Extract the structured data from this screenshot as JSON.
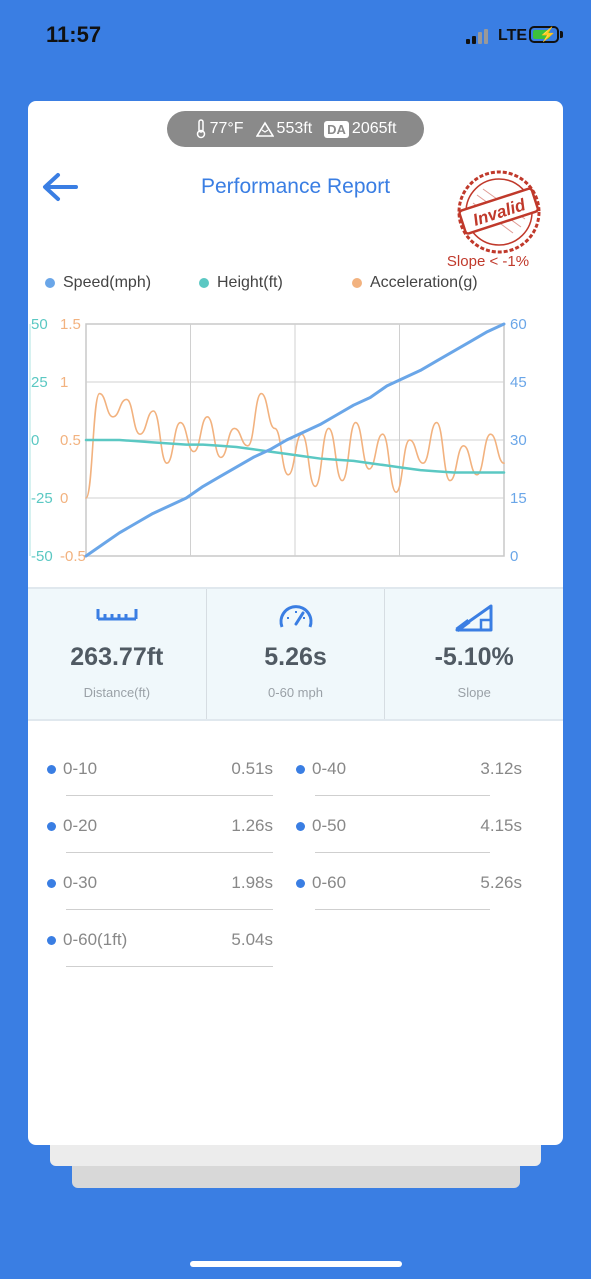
{
  "status_bar": {
    "time": "11:57",
    "network": "LTE"
  },
  "environment": {
    "temperature": "77°F",
    "altitude": "553ft",
    "da_badge": "DA",
    "density_altitude": "2065ft"
  },
  "header": {
    "title": "Performance Report"
  },
  "stamp": {
    "text": "Invalid",
    "note": "Slope < -1%"
  },
  "legend": [
    {
      "label": "Speed(mph)",
      "color": "#6aa6e8"
    },
    {
      "label": "Height(ft)",
      "color": "#5bc8c3"
    },
    {
      "label": "Acceleration(g)",
      "color": "#f2b27f"
    }
  ],
  "chart_data": {
    "type": "line",
    "x_range": [
      0,
      5.26
    ],
    "axes": {
      "height_ticks": [
        "50",
        "25",
        "0",
        "-25",
        "-50"
      ],
      "accel_ticks": [
        "1.5",
        "1",
        "0.5",
        "0",
        "-0.5"
      ],
      "speed_ticks": [
        "60",
        "45",
        "30",
        "15",
        "0"
      ]
    },
    "series": [
      {
        "name": "Speed(mph)",
        "color": "#6aa6e8",
        "ylim": [
          0,
          60
        ],
        "values": [
          0,
          3,
          6,
          8.5,
          11,
          13,
          15,
          18,
          20.5,
          23,
          25.5,
          27.5,
          30,
          32,
          34,
          36.5,
          39,
          41,
          44,
          46,
          48,
          50.5,
          53,
          55.5,
          58,
          60
        ]
      },
      {
        "name": "Height(ft)",
        "color": "#5bc8c3",
        "ylim": [
          -50,
          50
        ],
        "values": [
          0,
          0,
          0,
          -0.5,
          -1,
          -1.5,
          -2,
          -2,
          -2.5,
          -3,
          -4,
          -5,
          -6,
          -7,
          -8,
          -8.5,
          -9,
          -10,
          -11,
          -12,
          -13,
          -13.5,
          -14,
          -14,
          -14,
          -14
        ]
      },
      {
        "name": "Acceleration(g)",
        "color": "#f2b27f",
        "ylim": [
          -0.5,
          1.5
        ],
        "values": [
          0,
          0.9,
          0.7,
          0.85,
          0.55,
          0.75,
          0.3,
          0.65,
          0.4,
          0.7,
          0.35,
          0.6,
          0.45,
          0.9,
          0.6,
          0.2,
          0.55,
          0.1,
          0.6,
          0.15,
          0.65,
          0.25,
          0.55,
          0.05,
          0.5,
          0.3,
          0.65,
          0.15,
          0.45,
          0.2,
          0.55,
          0.3
        ]
      }
    ]
  },
  "stats": [
    {
      "icon": "ruler-icon",
      "value": "263.77ft",
      "label": "Distance(ft)"
    },
    {
      "icon": "speedometer-icon",
      "value": "5.26s",
      "label": "0-60 mph"
    },
    {
      "icon": "slope-icon",
      "value": "-5.10%",
      "label": "Slope"
    }
  ],
  "splits": [
    {
      "label": "0-10",
      "value": "0.51s"
    },
    {
      "label": "0-40",
      "value": "3.12s"
    },
    {
      "label": "0-20",
      "value": "1.26s"
    },
    {
      "label": "0-50",
      "value": "4.15s"
    },
    {
      "label": "0-30",
      "value": "1.98s"
    },
    {
      "label": "0-60",
      "value": "5.26s"
    },
    {
      "label": "0-60(1ft)",
      "value": "5.04s"
    }
  ]
}
